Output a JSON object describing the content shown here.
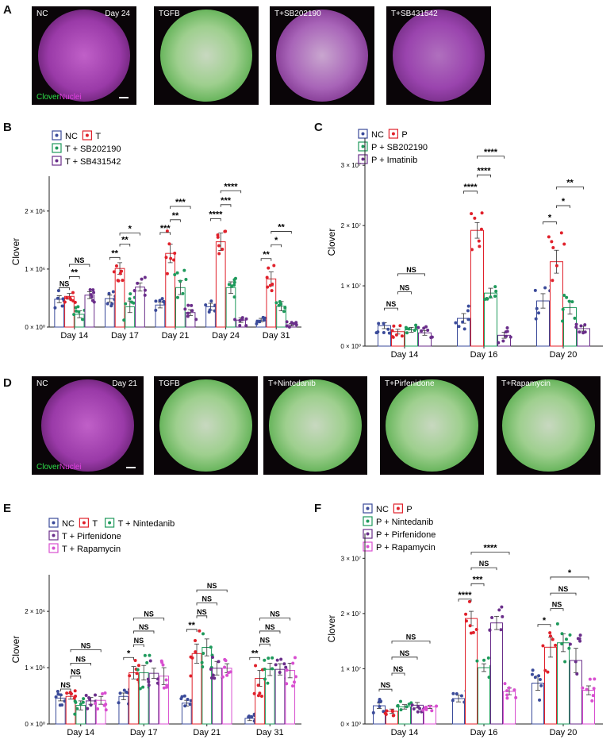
{
  "panelA": {
    "letter": "A",
    "images": [
      {
        "label": "NC",
        "day": "Day 24",
        "style": "nc"
      },
      {
        "label": "TGFB",
        "day": "",
        "style": "bright"
      },
      {
        "label": "T+SB202190",
        "day": "",
        "style": "dim"
      },
      {
        "label": "T+SB431542",
        "day": "",
        "style": "dim2"
      }
    ],
    "clover_word": "Clover",
    "nuclei_word": "Nuclei"
  },
  "panelD": {
    "letter": "D",
    "images": [
      {
        "label": "NC",
        "day": "Day 21",
        "style": "nc"
      },
      {
        "label": "TGFB",
        "day": "",
        "style": "bright"
      },
      {
        "label": "T+Nintedanib",
        "day": "",
        "style": "bright"
      },
      {
        "label": "T+Pirfenidone",
        "day": "",
        "style": "bright"
      },
      {
        "label": "T+Rapamycin",
        "day": "",
        "style": "bright"
      }
    ],
    "clover_word": "Clover",
    "nuclei_word": "Nuclei"
  },
  "colors": {
    "NC": "#3b4b9a",
    "T": "#e0212b",
    "G": "#1f9a5c",
    "V": "#6a2e8a",
    "R": "#d84fd0"
  },
  "chart_data": [
    {
      "id": "B",
      "letter": "B",
      "type": "bar",
      "ylabel": "Clover",
      "yticks": [
        {
          "v": 0,
          "label": "0 × 10⁰"
        },
        {
          "v": 1000000,
          "label": "1 × 10⁶"
        },
        {
          "v": 2000000,
          "label": "2 × 10⁶"
        }
      ],
      "ylim": [
        0,
        2600000
      ],
      "categories": [
        "Day 14",
        "Day 17",
        "Day 21",
        "Day 24",
        "Day 31"
      ],
      "series": [
        {
          "name": "NC",
          "color": "#3b4b9a",
          "values": [
            480000,
            490000,
            380000,
            350000,
            120000
          ],
          "err": [
            60000,
            60000,
            50000,
            60000,
            30000
          ]
        },
        {
          "name": "T",
          "color": "#e0212b",
          "values": [
            530000,
            1010000,
            1270000,
            1470000,
            830000
          ],
          "err": [
            50000,
            100000,
            160000,
            150000,
            120000
          ]
        },
        {
          "name": "T + SB202190",
          "color": "#1f9a5c",
          "values": [
            220000,
            350000,
            680000,
            680000,
            360000
          ],
          "err": [
            60000,
            100000,
            120000,
            100000,
            80000
          ]
        },
        {
          "name": "T + SB431542",
          "color": "#6a2e8a",
          "values": [
            550000,
            690000,
            250000,
            120000,
            40000
          ],
          "err": [
            60000,
            70000,
            50000,
            40000,
            20000
          ]
        }
      ],
      "legend": [
        [
          "NC",
          "T"
        ],
        [
          "T + SB202190"
        ],
        [
          "T + SB431542"
        ]
      ],
      "sig": [
        {
          "g": 0,
          "a": 0,
          "b": 1,
          "y": 680000,
          "t": "NS"
        },
        {
          "g": 0,
          "a": 1,
          "b": 2,
          "y": 870000,
          "t": "**"
        },
        {
          "g": 0,
          "a": 1,
          "b": 3,
          "y": 1080000,
          "t": "NS"
        },
        {
          "g": 1,
          "a": 0,
          "b": 1,
          "y": 1200000,
          "t": "**"
        },
        {
          "g": 1,
          "a": 1,
          "b": 2,
          "y": 1430000,
          "t": "**"
        },
        {
          "g": 1,
          "a": 1,
          "b": 3,
          "y": 1620000,
          "t": "*"
        },
        {
          "g": 2,
          "a": 0,
          "b": 1,
          "y": 1630000,
          "t": "***"
        },
        {
          "g": 2,
          "a": 1,
          "b": 2,
          "y": 1850000,
          "t": "**"
        },
        {
          "g": 2,
          "a": 1,
          "b": 3,
          "y": 2080000,
          "t": "***"
        },
        {
          "g": 3,
          "a": 0,
          "b": 1,
          "y": 1870000,
          "t": "****"
        },
        {
          "g": 3,
          "a": 1,
          "b": 2,
          "y": 2110000,
          "t": "***"
        },
        {
          "g": 3,
          "a": 1,
          "b": 3,
          "y": 2350000,
          "t": "****"
        },
        {
          "g": 4,
          "a": 0,
          "b": 1,
          "y": 1180000,
          "t": "**"
        },
        {
          "g": 4,
          "a": 1,
          "b": 2,
          "y": 1420000,
          "t": "*"
        },
        {
          "g": 4,
          "a": 1,
          "b": 3,
          "y": 1650000,
          "t": "**"
        }
      ]
    },
    {
      "id": "C",
      "letter": "C",
      "type": "bar",
      "ylabel": "Clover",
      "yticks": [
        {
          "v": 0,
          "label": "0 × 10⁰"
        },
        {
          "v": 10000000,
          "label": "1 × 10⁷"
        },
        {
          "v": 20000000,
          "label": "2 × 10⁷"
        },
        {
          "v": 30000000,
          "label": "3 × 10⁷"
        }
      ],
      "ylim": [
        0,
        34500000
      ],
      "categories": [
        "Day 14",
        "Day 16",
        "Day 20"
      ],
      "series": [
        {
          "name": "NC",
          "color": "#3b4b9a",
          "values": [
            3400000,
            4600000,
            7500000
          ],
          "err": [
            500000,
            800000,
            1200000
          ]
        },
        {
          "name": "P",
          "color": "#e0212b",
          "values": [
            2400000,
            19200000,
            14000000
          ],
          "err": [
            400000,
            1300000,
            1900000
          ]
        },
        {
          "name": "P + SB202190",
          "color": "#1f9a5c",
          "values": [
            2700000,
            8800000,
            6400000
          ],
          "err": [
            400000,
            800000,
            1100000
          ]
        },
        {
          "name": "P + Imatinib",
          "color": "#6a2e8a",
          "values": [
            2200000,
            1800000,
            2900000
          ],
          "err": [
            400000,
            500000,
            400000
          ]
        }
      ],
      "legend": [
        [
          "NC",
          "P"
        ],
        [
          "P + SB202190"
        ],
        [
          "P + Imatinib"
        ]
      ],
      "sig": [
        {
          "g": 0,
          "a": 0,
          "b": 1,
          "y": 6300000,
          "t": "NS"
        },
        {
          "g": 0,
          "a": 1,
          "b": 2,
          "y": 9000000,
          "t": "NS"
        },
        {
          "g": 0,
          "a": 1,
          "b": 3,
          "y": 12000000,
          "t": "NS"
        },
        {
          "g": 1,
          "a": 0,
          "b": 1,
          "y": 25700000,
          "t": "****"
        },
        {
          "g": 1,
          "a": 1,
          "b": 2,
          "y": 28400000,
          "t": "****"
        },
        {
          "g": 1,
          "a": 1,
          "b": 3,
          "y": 31500000,
          "t": "****"
        },
        {
          "g": 2,
          "a": 0,
          "b": 1,
          "y": 20600000,
          "t": "*"
        },
        {
          "g": 2,
          "a": 1,
          "b": 2,
          "y": 23300000,
          "t": "*"
        },
        {
          "g": 2,
          "a": 1,
          "b": 3,
          "y": 26400000,
          "t": "**"
        }
      ]
    },
    {
      "id": "E",
      "letter": "E",
      "type": "bar",
      "ylabel": "Clover",
      "yticks": [
        {
          "v": 0,
          "label": "0 × 10⁰"
        },
        {
          "v": 1000000,
          "label": "1 × 10⁶"
        },
        {
          "v": 2000000,
          "label": "2 × 10⁶"
        }
      ],
      "ylim": [
        0,
        2650000
      ],
      "categories": [
        "Day 14",
        "Day 17",
        "Day 21",
        "Day 31"
      ],
      "series": [
        {
          "name": "NC",
          "color": "#3b4b9a",
          "values": [
            460000,
            490000,
            370000,
            100000
          ],
          "err": [
            50000,
            60000,
            50000,
            40000
          ]
        },
        {
          "name": "T",
          "color": "#e0212b",
          "values": [
            490000,
            910000,
            1250000,
            810000
          ],
          "err": [
            50000,
            110000,
            170000,
            140000
          ]
        },
        {
          "name": "T + Nintedanib",
          "color": "#1f9a5c",
          "values": [
            330000,
            910000,
            1360000,
            970000
          ],
          "err": [
            80000,
            130000,
            150000,
            110000
          ]
        },
        {
          "name": "T + Pirfenidone",
          "color": "#6a2e8a",
          "values": [
            410000,
            900000,
            990000,
            970000
          ],
          "err": [
            60000,
            90000,
            120000,
            100000
          ]
        },
        {
          "name": "T + Rapamycin",
          "color": "#d84fd0",
          "values": [
            420000,
            850000,
            990000,
            950000
          ],
          "err": [
            70000,
            150000,
            80000,
            130000
          ]
        }
      ],
      "legend": [
        [
          "NC",
          "T",
          "T + Nintedanib"
        ],
        [
          "T + Pirfenidone"
        ],
        [
          "T + Rapamycin"
        ]
      ],
      "sig": [
        {
          "g": 0,
          "a": 0,
          "b": 1,
          "y": 620000,
          "t": "NS"
        },
        {
          "g": 0,
          "a": 1,
          "b": 2,
          "y": 850000,
          "t": "NS"
        },
        {
          "g": 0,
          "a": 1,
          "b": 3,
          "y": 1080000,
          "t": "NS"
        },
        {
          "g": 0,
          "a": 1,
          "b": 4,
          "y": 1320000,
          "t": "NS"
        },
        {
          "g": 1,
          "a": 0,
          "b": 1,
          "y": 1180000,
          "t": "*"
        },
        {
          "g": 1,
          "a": 1,
          "b": 2,
          "y": 1410000,
          "t": "NS"
        },
        {
          "g": 1,
          "a": 1,
          "b": 3,
          "y": 1650000,
          "t": "NS"
        },
        {
          "g": 1,
          "a": 1,
          "b": 4,
          "y": 1880000,
          "t": "NS"
        },
        {
          "g": 2,
          "a": 0,
          "b": 1,
          "y": 1680000,
          "t": "**"
        },
        {
          "g": 2,
          "a": 1,
          "b": 2,
          "y": 1920000,
          "t": "NS"
        },
        {
          "g": 2,
          "a": 1,
          "b": 3,
          "y": 2150000,
          "t": "NS"
        },
        {
          "g": 2,
          "a": 1,
          "b": 4,
          "y": 2380000,
          "t": "NS"
        },
        {
          "g": 3,
          "a": 0,
          "b": 1,
          "y": 1180000,
          "t": "**"
        },
        {
          "g": 3,
          "a": 1,
          "b": 2,
          "y": 1420000,
          "t": "NS"
        },
        {
          "g": 3,
          "a": 1,
          "b": 3,
          "y": 1650000,
          "t": "NS"
        },
        {
          "g": 3,
          "a": 1,
          "b": 4,
          "y": 1880000,
          "t": "NS"
        }
      ]
    },
    {
      "id": "F",
      "letter": "F",
      "type": "bar",
      "ylabel": "Clover",
      "yticks": [
        {
          "v": 0,
          "label": "0 × 10⁰"
        },
        {
          "v": 10000000,
          "label": "1 × 10⁷"
        },
        {
          "v": 20000000,
          "label": "2 × 10⁷"
        },
        {
          "v": 30000000,
          "label": "3 × 10⁷"
        }
      ],
      "ylim": [
        0,
        34500000
      ],
      "categories": [
        "Day 14",
        "Day 16",
        "Day 20"
      ],
      "series": [
        {
          "name": "NC",
          "color": "#3b4b9a",
          "values": [
            3300000,
            4600000,
            7400000
          ],
          "err": [
            500000,
            600000,
            1300000
          ]
        },
        {
          "name": "P",
          "color": "#e0212b",
          "values": [
            2300000,
            19100000,
            13900000
          ],
          "err": [
            400000,
            1300000,
            1800000
          ]
        },
        {
          "name": "P + Nintedanib",
          "color": "#1f9a5c",
          "values": [
            3100000,
            10200000,
            14700000
          ],
          "err": [
            400000,
            700000,
            1600000
          ]
        },
        {
          "name": "P + Pirfenidone",
          "color": "#6a2e8a",
          "values": [
            3400000,
            18300000,
            11500000
          ],
          "err": [
            500000,
            1200000,
            2200000
          ]
        },
        {
          "name": "P + Rapamycin",
          "color": "#d84fd0",
          "values": [
            3100000,
            5900000,
            6100000
          ],
          "err": [
            300000,
            600000,
            800000
          ]
        }
      ],
      "legend": [
        [
          "NC",
          "P"
        ],
        [
          "P + Nintedanib"
        ],
        [
          "P + Pirfenidone"
        ],
        [
          "P + Rapamycin"
        ]
      ],
      "sig": [
        {
          "g": 0,
          "a": 0,
          "b": 1,
          "y": 6300000,
          "t": "NS"
        },
        {
          "g": 0,
          "a": 1,
          "b": 2,
          "y": 9200000,
          "t": "NS"
        },
        {
          "g": 0,
          "a": 1,
          "b": 3,
          "y": 12100000,
          "t": "NS"
        },
        {
          "g": 0,
          "a": 1,
          "b": 4,
          "y": 15000000,
          "t": "NS"
        },
        {
          "g": 1,
          "a": 0,
          "b": 1,
          "y": 22600000,
          "t": "****"
        },
        {
          "g": 1,
          "a": 1,
          "b": 2,
          "y": 25400000,
          "t": "***"
        },
        {
          "g": 1,
          "a": 1,
          "b": 3,
          "y": 28300000,
          "t": "NS"
        },
        {
          "g": 1,
          "a": 1,
          "b": 4,
          "y": 31100000,
          "t": "****"
        },
        {
          "g": 2,
          "a": 0,
          "b": 1,
          "y": 18000000,
          "t": "*"
        },
        {
          "g": 2,
          "a": 1,
          "b": 2,
          "y": 20900000,
          "t": "NS"
        },
        {
          "g": 2,
          "a": 1,
          "b": 3,
          "y": 23700000,
          "t": "NS"
        },
        {
          "g": 2,
          "a": 1,
          "b": 4,
          "y": 26600000,
          "t": "*"
        }
      ]
    }
  ]
}
